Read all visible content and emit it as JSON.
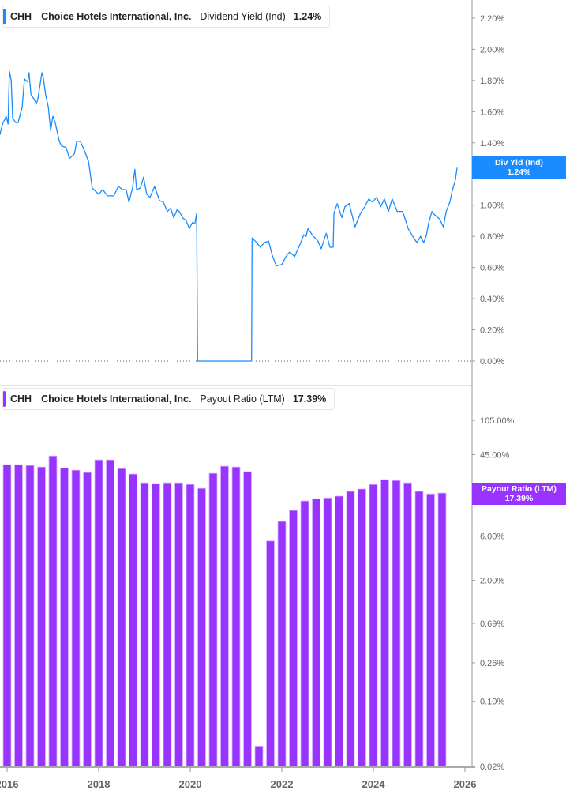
{
  "colors": {
    "yield": "#1a8cff",
    "payout": "#9933ff",
    "axis": "#999999",
    "text": "#666666"
  },
  "top_legend": {
    "ticker": "CHH",
    "company": "Choice Hotels International, Inc.",
    "metric": "Dividend Yield (Ind)",
    "value": "1.24%"
  },
  "bottom_legend": {
    "ticker": "CHH",
    "company": "Choice Hotels International, Inc.",
    "metric": "Payout Ratio (LTM)",
    "value": "17.39%"
  },
  "top_badge": {
    "label": "Div Yld (Ind)",
    "value": "1.24%"
  },
  "bottom_badge": {
    "label": "Payout Ratio (LTM)",
    "value": "17.39%"
  },
  "chart_data": [
    {
      "type": "line",
      "title": "CHH Dividend Yield (Ind)",
      "series_name": "Dividend Yield (Ind)",
      "ylim": [
        0,
        2.2
      ],
      "y_ticks": [
        "0.00%",
        "0.20%",
        "0.40%",
        "0.60%",
        "0.80%",
        "1.00%",
        "1.20%",
        "1.40%",
        "1.60%",
        "1.80%",
        "2.00%",
        "2.20%"
      ],
      "y_tick_values": [
        0,
        0.2,
        0.4,
        0.6,
        0.8,
        1.0,
        1.2,
        1.4,
        1.6,
        1.8,
        2.0,
        2.2
      ],
      "points": [
        [
          2015.84,
          1.45
        ],
        [
          2015.9,
          1.52
        ],
        [
          2015.98,
          1.57
        ],
        [
          2016.02,
          1.52
        ],
        [
          2016.05,
          1.86
        ],
        [
          2016.09,
          1.8
        ],
        [
          2016.12,
          1.56
        ],
        [
          2016.19,
          1.53
        ],
        [
          2016.24,
          1.53
        ],
        [
          2016.33,
          1.63
        ],
        [
          2016.38,
          1.81
        ],
        [
          2016.45,
          1.79
        ],
        [
          2016.48,
          1.85
        ],
        [
          2016.52,
          1.71
        ],
        [
          2016.59,
          1.68
        ],
        [
          2016.64,
          1.65
        ],
        [
          2016.67,
          1.68
        ],
        [
          2016.76,
          1.85
        ],
        [
          2016.79,
          1.82
        ],
        [
          2016.84,
          1.71
        ],
        [
          2016.9,
          1.63
        ],
        [
          2016.95,
          1.48
        ],
        [
          2017.0,
          1.57
        ],
        [
          2017.05,
          1.53
        ],
        [
          2017.14,
          1.41
        ],
        [
          2017.19,
          1.38
        ],
        [
          2017.29,
          1.37
        ],
        [
          2017.36,
          1.3
        ],
        [
          2017.47,
          1.33
        ],
        [
          2017.52,
          1.41
        ],
        [
          2017.6,
          1.41
        ],
        [
          2017.69,
          1.35
        ],
        [
          2017.78,
          1.28
        ],
        [
          2017.86,
          1.11
        ],
        [
          2017.93,
          1.09
        ],
        [
          2018.0,
          1.07
        ],
        [
          2018.09,
          1.1
        ],
        [
          2018.19,
          1.06
        ],
        [
          2018.33,
          1.06
        ],
        [
          2018.43,
          1.12
        ],
        [
          2018.52,
          1.1
        ],
        [
          2018.6,
          1.1
        ],
        [
          2018.66,
          1.02
        ],
        [
          2018.74,
          1.11
        ],
        [
          2018.79,
          1.23
        ],
        [
          2018.83,
          1.1
        ],
        [
          2018.91,
          1.11
        ],
        [
          2018.98,
          1.18
        ],
        [
          2019.05,
          1.07
        ],
        [
          2019.12,
          1.05
        ],
        [
          2019.22,
          1.12
        ],
        [
          2019.33,
          1.03
        ],
        [
          2019.41,
          1.02
        ],
        [
          2019.5,
          0.96
        ],
        [
          2019.57,
          0.98
        ],
        [
          2019.64,
          0.92
        ],
        [
          2019.71,
          0.97
        ],
        [
          2019.76,
          0.96
        ],
        [
          2019.83,
          0.92
        ],
        [
          2019.91,
          0.9
        ],
        [
          2019.98,
          0.85
        ],
        [
          2020.05,
          0.89
        ],
        [
          2020.1,
          0.88
        ],
        [
          2020.14,
          0.95
        ],
        [
          2020.16,
          0
        ],
        [
          2021.34,
          0
        ],
        [
          2021.35,
          0.79
        ],
        [
          2021.45,
          0.76
        ],
        [
          2021.53,
          0.73
        ],
        [
          2021.62,
          0.76
        ],
        [
          2021.71,
          0.77
        ],
        [
          2021.79,
          0.68
        ],
        [
          2021.88,
          0.61
        ],
        [
          2022.0,
          0.62
        ],
        [
          2022.09,
          0.67
        ],
        [
          2022.17,
          0.7
        ],
        [
          2022.28,
          0.67
        ],
        [
          2022.4,
          0.75
        ],
        [
          2022.48,
          0.81
        ],
        [
          2022.53,
          0.8
        ],
        [
          2022.57,
          0.85
        ],
        [
          2022.69,
          0.8
        ],
        [
          2022.79,
          0.77
        ],
        [
          2022.86,
          0.72
        ],
        [
          2022.97,
          0.82
        ],
        [
          2023.05,
          0.73
        ],
        [
          2023.12,
          0.73
        ],
        [
          2023.14,
          0.95
        ],
        [
          2023.21,
          1.01
        ],
        [
          2023.31,
          0.92
        ],
        [
          2023.38,
          0.99
        ],
        [
          2023.47,
          1.01
        ],
        [
          2023.6,
          0.86
        ],
        [
          2023.72,
          0.95
        ],
        [
          2023.81,
          0.99
        ],
        [
          2023.9,
          1.04
        ],
        [
          2023.98,
          1.02
        ],
        [
          2024.07,
          1.05
        ],
        [
          2024.16,
          0.99
        ],
        [
          2024.24,
          1.04
        ],
        [
          2024.33,
          0.96
        ],
        [
          2024.41,
          1.04
        ],
        [
          2024.52,
          0.96
        ],
        [
          2024.64,
          0.96
        ],
        [
          2024.76,
          0.85
        ],
        [
          2024.86,
          0.8
        ],
        [
          2024.95,
          0.76
        ],
        [
          2025.03,
          0.8
        ],
        [
          2025.1,
          0.76
        ],
        [
          2025.16,
          0.81
        ],
        [
          2025.21,
          0.89
        ],
        [
          2025.28,
          0.96
        ],
        [
          2025.33,
          0.94
        ],
        [
          2025.45,
          0.91
        ],
        [
          2025.53,
          0.86
        ],
        [
          2025.59,
          0.96
        ],
        [
          2025.67,
          1.02
        ],
        [
          2025.72,
          1.09
        ],
        [
          2025.79,
          1.16
        ],
        [
          2025.83,
          1.24
        ]
      ]
    },
    {
      "type": "bar",
      "title": "CHH Payout Ratio (LTM)",
      "series_name": "Payout Ratio (LTM)",
      "yscale": "log",
      "ylim": [
        0.02,
        105
      ],
      "y_ticks": [
        "0.02%",
        "0.10%",
        "0.26%",
        "0.69%",
        "2.00%",
        "6.00%",
        "15.00%",
        "45.00%",
        "105.00%"
      ],
      "y_tick_values": [
        0.02,
        0.1,
        0.26,
        0.69,
        2,
        6,
        15,
        45,
        105
      ],
      "start_year": 2016.0,
      "step_years": 0.25,
      "values": [
        35.1,
        35.1,
        34.4,
        33.1,
        43.5,
        32.4,
        30.6,
        28.9,
        39.5,
        39.5,
        31.8,
        27.8,
        22.4,
        22.0,
        22.4,
        22.4,
        21.5,
        19.5,
        28.3,
        33.8,
        33.1,
        29.5,
        0.033,
        5.3,
        8.6,
        11.3,
        14.3,
        15.1,
        15.4,
        16.1,
        18.1,
        19.2,
        21.5,
        24.2,
        23.7,
        22.4,
        18.1,
        17.0,
        17.39
      ]
    }
  ],
  "x_axis": {
    "ticks": [
      "2016",
      "2018",
      "2020",
      "2022",
      "2024",
      "2026"
    ],
    "tick_values": [
      2016,
      2018,
      2020,
      2022,
      2024,
      2026
    ]
  }
}
